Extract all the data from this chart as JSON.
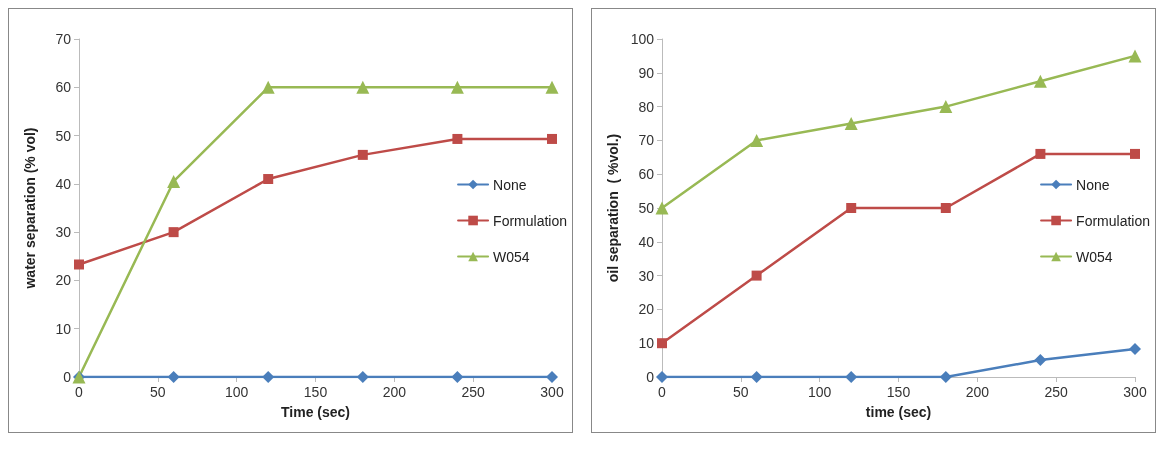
{
  "chart_data": [
    {
      "type": "line",
      "xlabel": "Time (sec)",
      "ylabel": "water separation (% vol)",
      "x": [
        0,
        60,
        120,
        180,
        240,
        300
      ],
      "xlim": [
        0,
        300
      ],
      "xticks": [
        0,
        50,
        100,
        150,
        200,
        250,
        300
      ],
      "ylim": [
        0,
        70
      ],
      "yticks": [
        0,
        10,
        20,
        30,
        40,
        50,
        60,
        70
      ],
      "grid": false,
      "legend": "right",
      "line_style": "solid",
      "series": [
        {
          "name": "None",
          "color": "#4a7ebb",
          "marker": "diamond",
          "values": [
            0,
            0,
            0,
            0,
            0,
            0
          ]
        },
        {
          "name": "Formulation",
          "color": "#be4b48",
          "marker": "square",
          "values": [
            23.3,
            30,
            41,
            46,
            49.3,
            49.3
          ]
        },
        {
          "name": "W054",
          "color": "#98b954",
          "marker": "triangle",
          "values": [
            0,
            40.5,
            60,
            60,
            60,
            60
          ]
        }
      ]
    },
    {
      "type": "line",
      "xlabel": "time (sec)",
      "ylabel": "oil separation  ( %vol.)",
      "x": [
        0,
        60,
        120,
        180,
        240,
        300
      ],
      "xlim": [
        0,
        300
      ],
      "xticks": [
        0,
        50,
        100,
        150,
        200,
        250,
        300
      ],
      "ylim": [
        0,
        100
      ],
      "yticks": [
        0,
        10,
        20,
        30,
        40,
        50,
        60,
        70,
        80,
        90,
        100
      ],
      "grid": false,
      "legend": "right",
      "line_style": "solid",
      "series": [
        {
          "name": "None",
          "color": "#4a7ebb",
          "marker": "diamond",
          "values": [
            0,
            0,
            0,
            0,
            5,
            8.3
          ]
        },
        {
          "name": "Formulation",
          "color": "#be4b48",
          "marker": "square",
          "values": [
            10,
            30,
            50,
            50,
            66,
            66
          ]
        },
        {
          "name": "W054",
          "color": "#98b954",
          "marker": "triangle",
          "values": [
            50,
            70,
            75,
            80,
            87.5,
            95
          ]
        }
      ]
    }
  ]
}
